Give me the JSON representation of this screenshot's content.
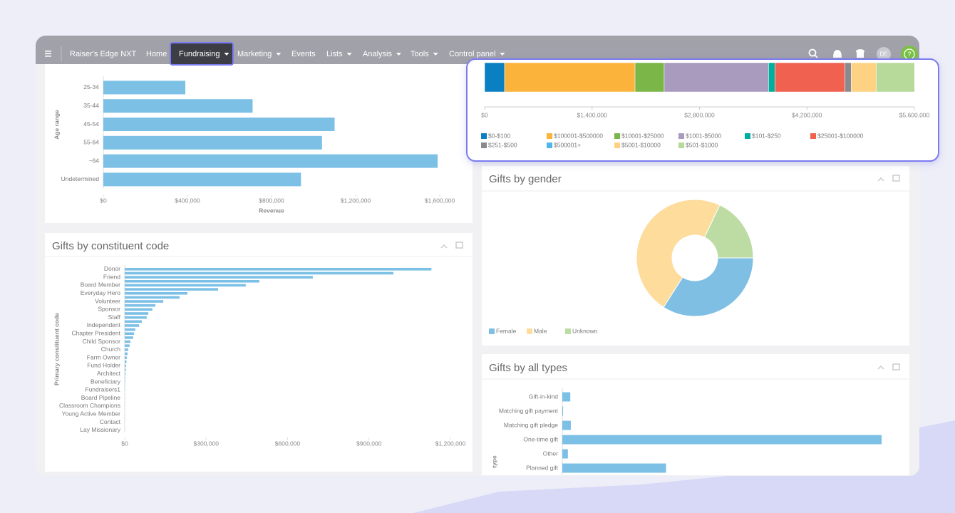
{
  "nav": {
    "brand": "Raiser's Edge NXT",
    "items": [
      "Home",
      "Fundraising",
      "Marketing",
      "Events",
      "Lists",
      "Analysis",
      "Tools",
      "Control panel"
    ],
    "avatar": "DE"
  },
  "chart_data": [
    {
      "type": "hbar",
      "xlabel": "Revenue",
      "ylabel": "Age range",
      "color": "#7dc0e6",
      "categories": [
        "25-34",
        "35-44",
        "45-54",
        "55-64",
        "~64",
        "Undetermined"
      ],
      "values": [
        390000,
        710000,
        1100000,
        1040000,
        1590000,
        940000
      ],
      "xlim": [
        0,
        1600000
      ],
      "xticks": [
        {
          "value": 0,
          "label": "$0"
        },
        {
          "value": 400000,
          "label": "$400,000"
        },
        {
          "value": 800000,
          "label": "$800,000"
        },
        {
          "value": 1200000,
          "label": "$1,200,000"
        },
        {
          "value": 1600000,
          "label": "$1,600,000"
        }
      ]
    },
    {
      "type": "stacked-hbar",
      "series": [
        {
          "name": "$0-$100",
          "color": "#0a7fc2",
          "values": [
            260000
          ]
        },
        {
          "name": "$100001-$500000",
          "color": "#fbb33b",
          "values": [
            1700000
          ]
        },
        {
          "name": "$10001-$25000",
          "color": "#7ab648",
          "values": [
            380000
          ]
        },
        {
          "name": "$1001-$5000",
          "color": "#a99bbd",
          "values": [
            1360000
          ]
        },
        {
          "name": "$101-$250",
          "color": "#00ae9e",
          "values": [
            84000
          ]
        },
        {
          "name": "$25001-$100000",
          "color": "#f0614f",
          "values": [
            910000
          ]
        },
        {
          "name": "$251-$500",
          "color": "#8a8a8e",
          "values": [
            84000
          ]
        },
        {
          "name": "$500001+",
          "color": "#4db8e8",
          "values": [
            0
          ]
        },
        {
          "name": "$5001-$10000",
          "color": "#fdd383",
          "values": [
            325000
          ]
        },
        {
          "name": "$501-$1000",
          "color": "#b7d99a",
          "values": [
            500000
          ]
        }
      ],
      "xlim": [
        0,
        5600000
      ],
      "xticks": [
        {
          "value": 0,
          "label": "$0"
        },
        {
          "value": 1400000,
          "label": "$1,400,000"
        },
        {
          "value": 2800000,
          "label": "$2,800,000"
        },
        {
          "value": 4200000,
          "label": "$4,200,000"
        },
        {
          "value": 5600000,
          "label": "$5,600,000"
        }
      ]
    },
    {
      "type": "hbar",
      "title": "Gifts by constituent code",
      "ylabel": "Primary constituent code",
      "color": "#7dc0e6",
      "categories": [
        "Donor",
        null,
        "Friend",
        null,
        "Board Member",
        null,
        "Everyday Hero",
        null,
        "Volunteer",
        null,
        "Sponsor",
        null,
        "Staff",
        null,
        "Independent",
        null,
        "Chapter President",
        null,
        "Child Sponsor",
        null,
        "Church",
        null,
        "Farm Owner",
        null,
        "Fund Holder",
        null,
        "Architect",
        null,
        "Beneficiary",
        null,
        "Fundraisers1",
        null,
        "Board Pipeline",
        null,
        "Classroom Champions",
        null,
        "Young Active Member",
        null,
        "Contact",
        null,
        "Lay Missionary"
      ],
      "values": [
        1130000,
        990000,
        693000,
        496000,
        446000,
        344000,
        231000,
        202000,
        142000,
        113000,
        102000,
        87000,
        81000,
        63000,
        53000,
        39000,
        34000,
        31000,
        21000,
        18000,
        13000,
        10500,
        8000,
        6500,
        5000,
        4000,
        3000,
        2000,
        1500,
        1000,
        800,
        600,
        500,
        400,
        300,
        200,
        150,
        100,
        80,
        50,
        30
      ],
      "xlim": [
        0,
        1200000
      ],
      "xticks": [
        {
          "value": 0,
          "label": "$0"
        },
        {
          "value": 300000,
          "label": "$300,000"
        },
        {
          "value": 600000,
          "label": "$600,000"
        },
        {
          "value": 900000,
          "label": "$900,000"
        },
        {
          "value": 1200000,
          "label": "$1,200,000"
        }
      ]
    },
    {
      "type": "pie",
      "donut": true,
      "title": "Gifts by gender",
      "categories": [
        "Female",
        "Male",
        "Unknown"
      ],
      "values": [
        34,
        48,
        18
      ],
      "colors": [
        "#7fbfe4",
        "#fddc9c",
        "#bcdca4"
      ]
    },
    {
      "type": "hbar",
      "title": "Gifts by all types",
      "ylabel": "type",
      "color": "#7dc0e6",
      "categories": [
        "Gift-in-kind",
        "Matching gift payment",
        "Matching gift pledge",
        "One-time gift",
        "Other",
        "Planned gift"
      ],
      "values": [
        30000,
        3000,
        32000,
        1200000,
        21000,
        390000
      ],
      "xlim": [
        0,
        1200000
      ]
    }
  ]
}
